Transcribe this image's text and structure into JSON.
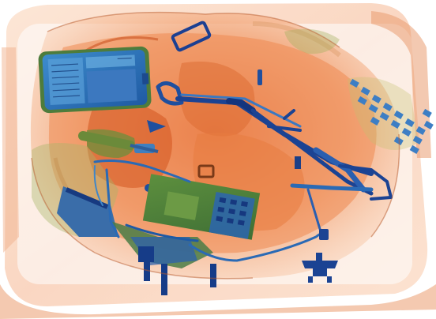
{
  "image": {
    "kind": "x-ray baggage scan",
    "palette": {
      "background": "#ffffff",
      "organic": "#e9733c",
      "organic_light": "#f6b88d",
      "organic_dark": "#c0441a",
      "mixed": "#8fb35a",
      "mixed_dark": "#4f7b3a",
      "metal": "#2a6ab5",
      "metal_dark": "#14357e",
      "metal_light": "#63a8d8"
    }
  }
}
